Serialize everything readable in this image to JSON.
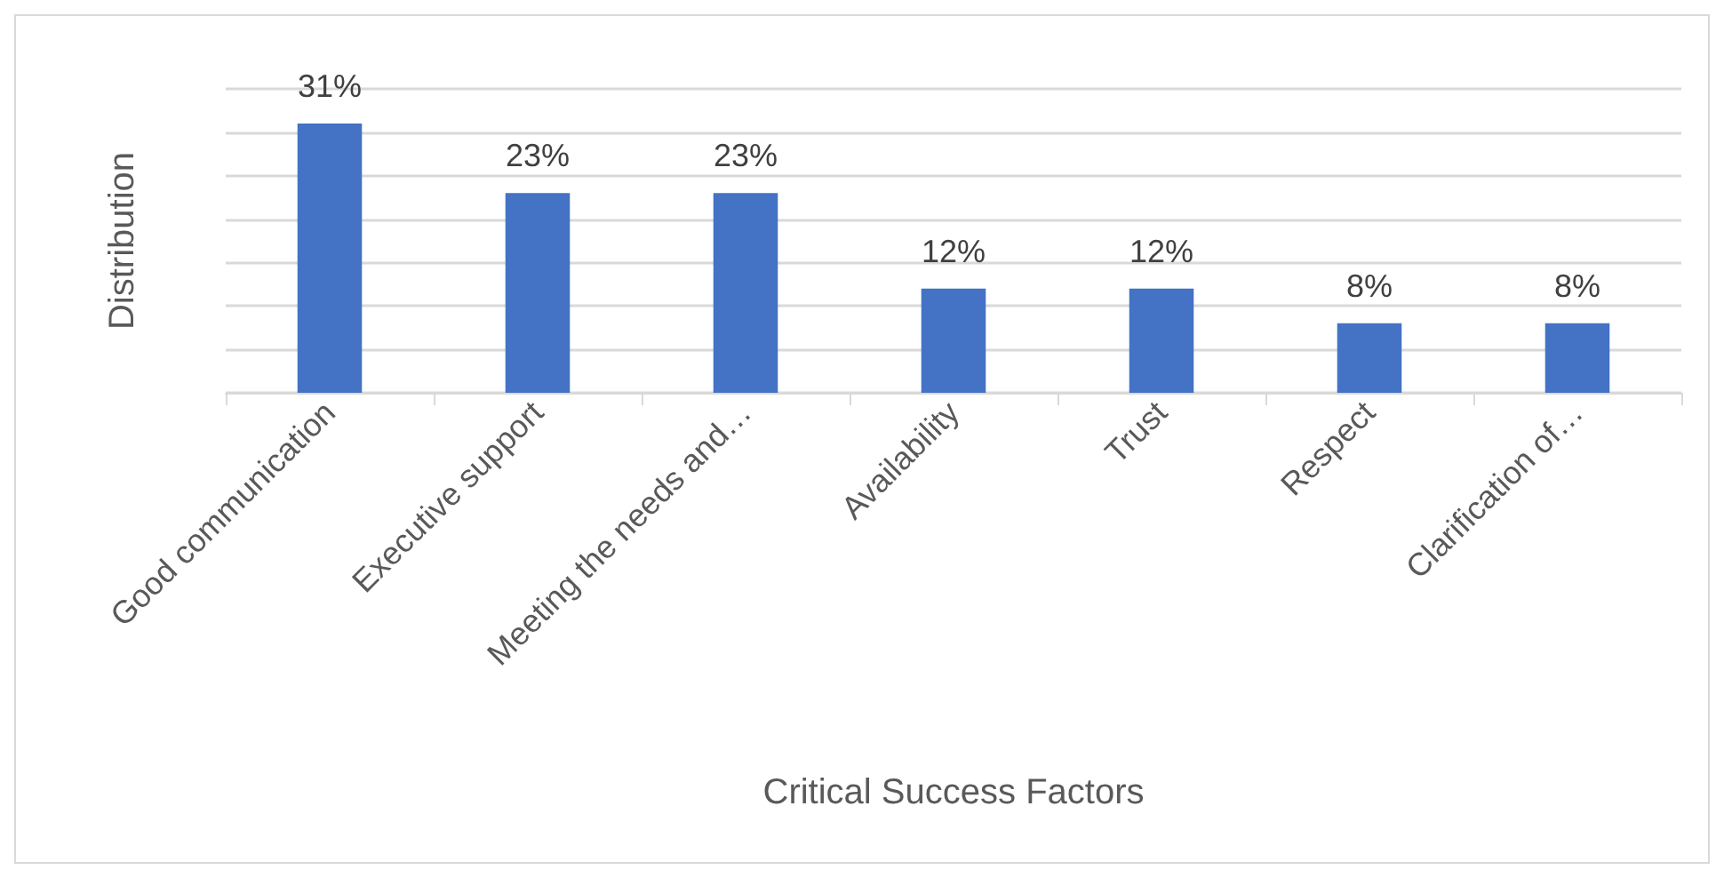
{
  "chart_data": {
    "type": "bar",
    "xlabel": "Critical Success Factors",
    "ylabel": "Distribution",
    "categories": [
      "Good communication",
      "Executive support",
      "Meeting the needs and…",
      "Availability",
      "Trust",
      "Respect",
      "Clarification of…"
    ],
    "values": [
      31,
      23,
      23,
      12,
      12,
      8,
      8
    ],
    "color": "#4472c4",
    "value_labels": [
      "31%",
      "23%",
      "23%",
      "12%",
      "12%",
      "8%",
      "8%"
    ],
    "ylim": [
      0,
      35
    ],
    "yticks": [
      {
        "value": 0,
        "label": null
      },
      {
        "value": 5,
        "label": null
      },
      {
        "value": 10,
        "label": null
      },
      {
        "value": 15,
        "label": null
      },
      {
        "value": 20,
        "label": null
      },
      {
        "value": 25,
        "label": null
      },
      {
        "value": 30,
        "label": null
      },
      {
        "value": 35,
        "label": null
      }
    ],
    "grid": "y",
    "tick_labels": "x"
  }
}
